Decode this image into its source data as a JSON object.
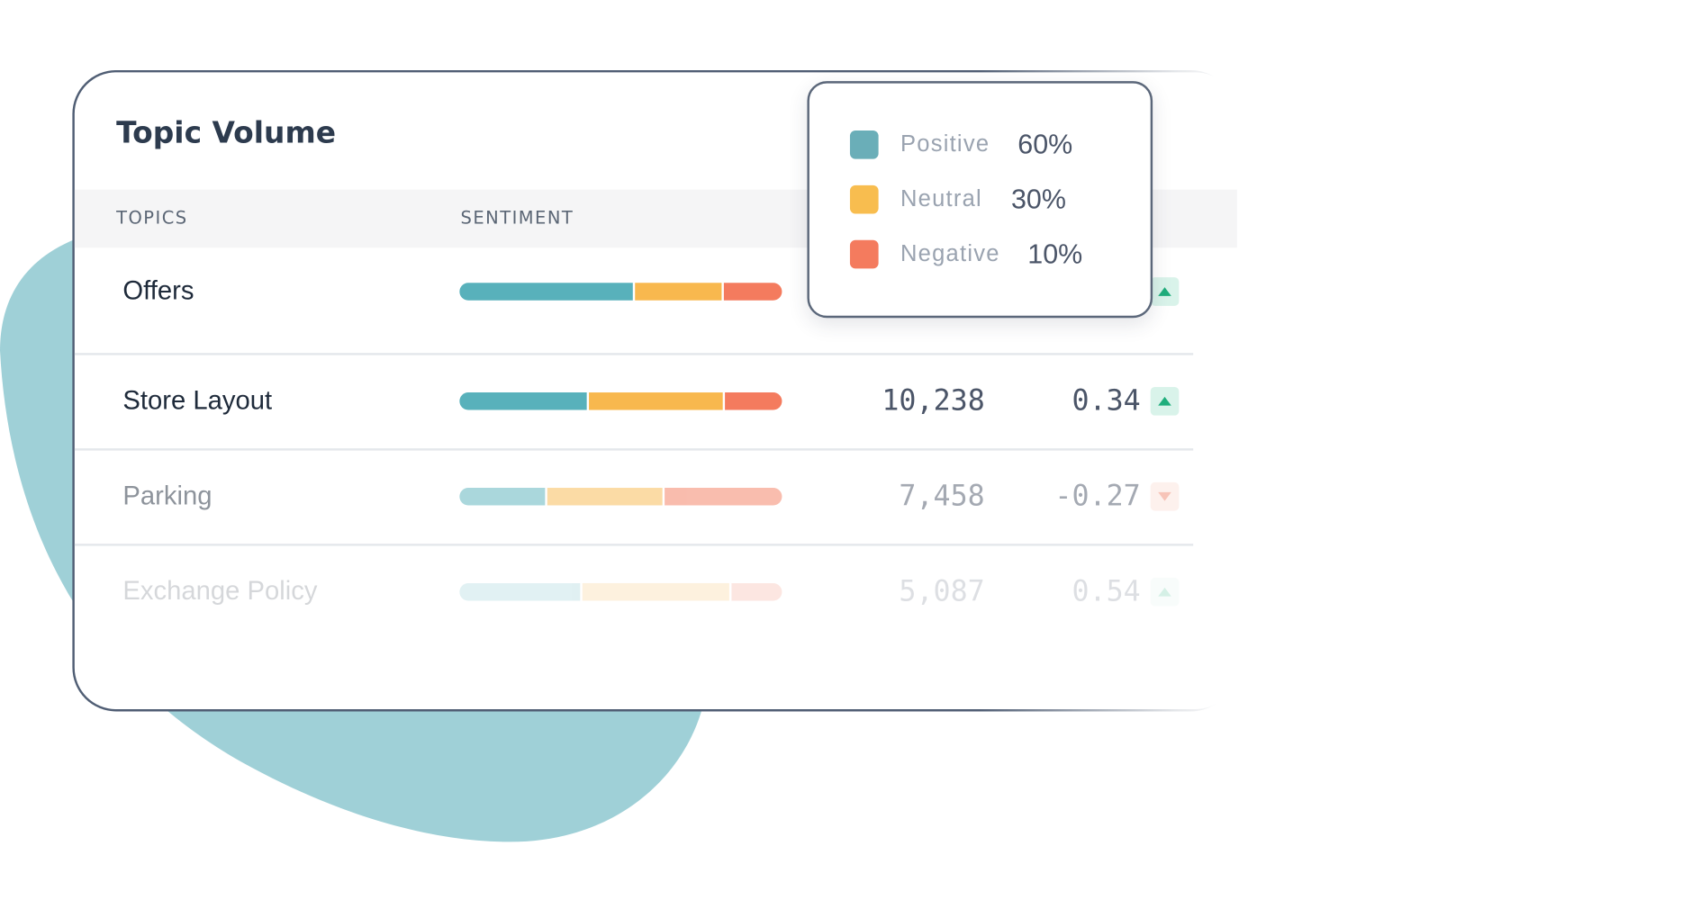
{
  "title": "Topic Volume",
  "table": {
    "headers": [
      "TOPICS",
      "SENTIMENT"
    ],
    "colors": [
      "#58b1bb",
      "#f8b84e",
      "#f47b5e"
    ],
    "rows": [
      {
        "topic": "Offers",
        "sentiment": [
          54,
          27,
          18
        ],
        "trend": "up"
      },
      {
        "topic": "Store Layout",
        "sentiment": [
          40,
          42,
          18
        ],
        "volume": "10,238",
        "score": "0.34",
        "trend": "up"
      },
      {
        "topic": "Parking",
        "sentiment": [
          27,
          36,
          37
        ],
        "volume": "7,458",
        "score": "-0.27",
        "trend": "down"
      },
      {
        "topic": "Exchange Policy",
        "sentiment": [
          38,
          46,
          16
        ],
        "volume": "5,087",
        "score": "0.54",
        "trend": "up"
      }
    ]
  },
  "tooltip": {
    "items": [
      {
        "label": "Positive",
        "value": "60%",
        "color": "#6aaeb8"
      },
      {
        "label": "Neutral",
        "value": "30%",
        "color": "#f8bd4f"
      },
      {
        "label": "Negative",
        "value": "10%",
        "color": "#f47b5e"
      }
    ]
  }
}
